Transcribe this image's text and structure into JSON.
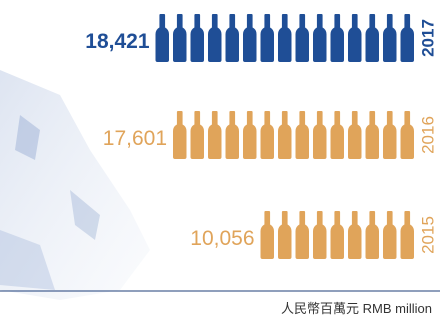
{
  "chart_data": {
    "type": "bar",
    "orientation": "horizontal",
    "unit_label": "人民幣百萬元 RMB million",
    "categories": [
      "2017",
      "2016",
      "2015"
    ],
    "values": [
      18421,
      17601,
      10056
    ],
    "value_labels": [
      "18,421",
      "17,601",
      "10,056"
    ],
    "bottle_counts": [
      15,
      14,
      9
    ],
    "highlight_category": "2017",
    "colors": {
      "highlight": "#1f4e96",
      "default": "#e0a45a",
      "divider": "#1f3f7a",
      "unit_text": "#333333"
    },
    "grid": false,
    "legend": "none"
  }
}
